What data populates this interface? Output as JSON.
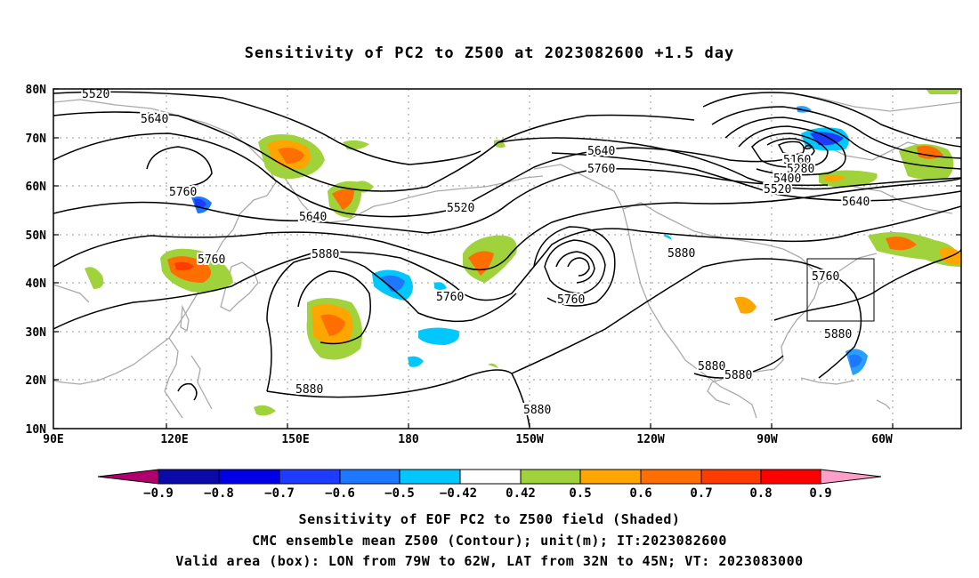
{
  "title": "Sensitivity of PC2 to Z500 at 2023082600 +1.5 day",
  "axes": {
    "lon_ticks": [
      "90E",
      "120E",
      "150E",
      "180",
      "150W",
      "120W",
      "90W",
      "60W"
    ],
    "lat_ticks": [
      "80N",
      "70N",
      "60N",
      "50N",
      "40N",
      "30N",
      "20N",
      "10N"
    ]
  },
  "contour_labels": [
    "5520",
    "5640",
    "5760",
    "5640",
    "5880",
    "5520",
    "5760",
    "5640",
    "5760",
    "5760",
    "5880",
    "5880",
    "5880",
    "5160",
    "5280",
    "5400",
    "5520",
    "5640",
    "5760",
    "5880",
    "5880",
    "5880",
    "5760"
  ],
  "colorbar": {
    "labels": [
      "−0.9",
      "−0.8",
      "−0.7",
      "−0.6",
      "−0.5",
      "−0.42",
      "0.42",
      "0.5",
      "0.6",
      "0.7",
      "0.8",
      "0.9"
    ],
    "colors": [
      "#b0006e",
      "#0a0aa8",
      "#0000e6",
      "#1e3cff",
      "#1e78ff",
      "#28a0ff",
      "#00c8ff",
      "#ffffff",
      "#a0d23c",
      "#ffa500",
      "#ff6e00",
      "#ff3c00",
      "#ff0000",
      "#ff9ec8"
    ]
  },
  "captions": {
    "line1": "Sensitivity of EOF PC2 to Z500 field (Shaded)",
    "line2": "CMC ensemble mean Z500 (Contour); unit(m); IT:2023082600",
    "line3": "Valid area (box): LON from 79W to 62W, LAT from 32N to 45N; VT: 2023083000"
  }
}
